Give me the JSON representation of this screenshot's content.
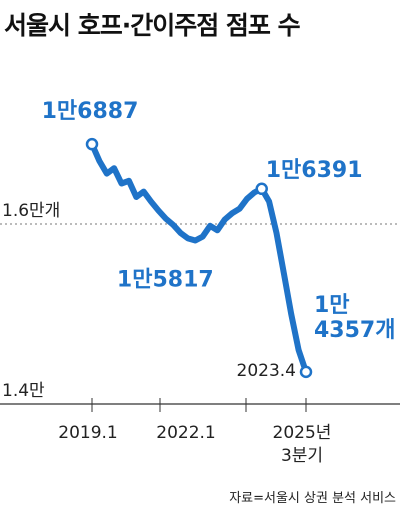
{
  "title": "서울시 호프·간이주점 점포 수",
  "source": "자료=서울시 상권 분석 서비스",
  "colors": {
    "line": "#1f73c8",
    "label": "#1f73c8",
    "axis": "#333333",
    "grid": "#777777",
    "text": "#222222"
  },
  "chart_data": {
    "type": "line",
    "title": "서울시 호프·간이주점 점포 수",
    "unit": "개",
    "x_tick_labels": [
      "2019.1",
      "2022.1",
      "2025년\n3분기"
    ],
    "y_tick_labels": [
      {
        "value": 16000,
        "label": "1.6만개"
      },
      {
        "value": 14000,
        "label": "1.4만"
      }
    ],
    "ylim": [
      14000,
      17200
    ],
    "grid": "dashed horizontal at 1.6만 and 1.4만",
    "series": [
      {
        "values": [
          16887,
          16700,
          16560,
          16620,
          16450,
          16480,
          16300,
          16360,
          16250,
          16150,
          16060,
          15990,
          15900,
          15840,
          15817,
          15860,
          15980,
          15930,
          16050,
          16120,
          16170,
          16280,
          16350,
          16391,
          16250,
          15900,
          15450,
          15000,
          14600,
          14357
        ]
      }
    ],
    "annotations": [
      {
        "index": 0,
        "label": "1만6887",
        "position": "above"
      },
      {
        "index": 14,
        "label": "1만5817",
        "position": "below"
      },
      {
        "index": 23,
        "label": "1만6391",
        "position": "above-right"
      },
      {
        "index": 29,
        "label": "1만\n4357개",
        "position": "above-right"
      },
      {
        "index": 29,
        "label": "2023.4",
        "position": "left",
        "note": "x-axis annotation printed beside last point"
      }
    ]
  }
}
